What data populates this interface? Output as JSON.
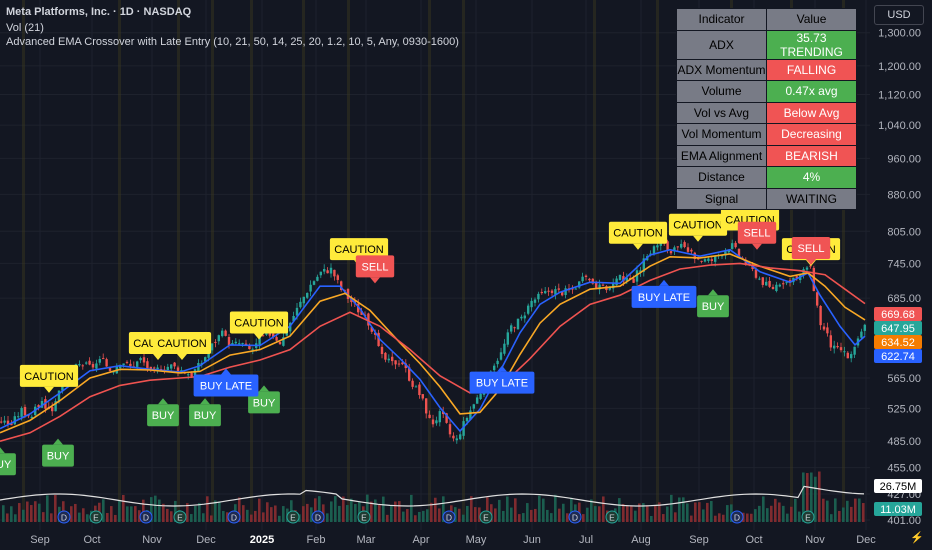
{
  "header": {
    "symbol": "Meta Platforms, Inc. · 1D · NASDAQ",
    "volume_indicator": "Vol (21)",
    "strategy": "Advanced EMA Crossover with Late Entry (10, 21, 50, 14, 25, 20, 1.2, 10, 5, Any, 0930-1600)"
  },
  "currency": "USD",
  "panel": {
    "headers": [
      "Indicator",
      "Value"
    ],
    "rows": [
      {
        "label": "ADX",
        "value": "35.73 TRENDING",
        "color": "#4caf50"
      },
      {
        "label": "ADX Momentum",
        "value": "FALLING",
        "color": "#f05454"
      },
      {
        "label": "Volume",
        "value": "0.47x avg",
        "color": "#4caf50"
      },
      {
        "label": "Vol vs Avg",
        "value": "Below Avg",
        "color": "#f05454"
      },
      {
        "label": "Vol Momentum",
        "value": "Decreasing",
        "color": "#f05454"
      },
      {
        "label": "EMA Alignment",
        "value": "BEARISH",
        "color": "#f05454"
      },
      {
        "label": "Distance",
        "value": "4%",
        "color": "#4caf50"
      },
      {
        "label": "Signal",
        "value": "WAITING",
        "color": "#787b86"
      }
    ]
  },
  "chart_data": {
    "type": "candlestick",
    "x_labels": [
      "Sep",
      "Oct",
      "Nov",
      "Dec",
      "2025",
      "Feb",
      "Mar",
      "Apr",
      "May",
      "Jun",
      "Jul",
      "Aug",
      "Sep",
      "Oct",
      "Nov",
      "Dec"
    ],
    "y_ticks": [
      1300,
      1200,
      1120,
      1040,
      960,
      880,
      805,
      745,
      685,
      565,
      525,
      485,
      455,
      427,
      401
    ],
    "y_scale": "log",
    "ylim": [
      401,
      1380
    ],
    "price_path": [
      [
        0,
        510
      ],
      [
        10,
        505
      ],
      [
        20,
        523
      ],
      [
        30,
        515
      ],
      [
        40,
        535
      ],
      [
        50,
        520
      ],
      [
        60,
        560
      ],
      [
        70,
        575
      ],
      [
        80,
        585
      ],
      [
        90,
        580
      ],
      [
        100,
        590
      ],
      [
        110,
        575
      ],
      [
        120,
        590
      ],
      [
        130,
        580
      ],
      [
        140,
        592
      ],
      [
        150,
        572
      ],
      [
        160,
        580
      ],
      [
        170,
        582
      ],
      [
        180,
        576
      ],
      [
        190,
        570
      ],
      [
        200,
        586
      ],
      [
        210,
        610
      ],
      [
        220,
        630
      ],
      [
        230,
        612
      ],
      [
        240,
        615
      ],
      [
        250,
        603
      ],
      [
        260,
        622
      ],
      [
        270,
        630
      ],
      [
        280,
        615
      ],
      [
        290,
        650
      ],
      [
        300,
        680
      ],
      [
        310,
        710
      ],
      [
        320,
        730
      ],
      [
        330,
        735
      ],
      [
        340,
        700
      ],
      [
        350,
        680
      ],
      [
        360,
        660
      ],
      [
        370,
        640
      ],
      [
        380,
        595
      ],
      [
        390,
        585
      ],
      [
        400,
        590
      ],
      [
        410,
        560
      ],
      [
        420,
        540
      ],
      [
        430,
        505
      ],
      [
        440,
        520
      ],
      [
        450,
        490
      ],
      [
        455,
        485
      ],
      [
        460,
        500
      ],
      [
        470,
        525
      ],
      [
        480,
        548
      ],
      [
        490,
        580
      ],
      [
        500,
        600
      ],
      [
        510,
        640
      ],
      [
        520,
        652
      ],
      [
        530,
        680
      ],
      [
        540,
        690
      ],
      [
        550,
        700
      ],
      [
        560,
        695
      ],
      [
        570,
        698
      ],
      [
        580,
        715
      ],
      [
        590,
        715
      ],
      [
        600,
        700
      ],
      [
        610,
        705
      ],
      [
        620,
        720
      ],
      [
        630,
        710
      ],
      [
        640,
        740
      ],
      [
        650,
        770
      ],
      [
        660,
        785
      ],
      [
        670,
        765
      ],
      [
        680,
        775
      ],
      [
        690,
        760
      ],
      [
        700,
        752
      ],
      [
        710,
        750
      ],
      [
        720,
        765
      ],
      [
        730,
        780
      ],
      [
        740,
        755
      ],
      [
        750,
        735
      ],
      [
        760,
        715
      ],
      [
        770,
        700
      ],
      [
        780,
        715
      ],
      [
        790,
        710
      ],
      [
        800,
        725
      ],
      [
        808,
        745
      ],
      [
        815,
        680
      ],
      [
        820,
        640
      ],
      [
        825,
        630
      ],
      [
        830,
        610
      ],
      [
        835,
        604
      ],
      [
        840,
        605
      ],
      [
        848,
        592
      ],
      [
        855,
        610
      ],
      [
        862,
        640
      ]
    ],
    "series": [
      {
        "name": "EMA 10",
        "color": "#2962ff",
        "values": [
          [
            0,
            500
          ],
          [
            30,
            518
          ],
          [
            60,
            545
          ],
          [
            90,
            575
          ],
          [
            120,
            582
          ],
          [
            150,
            577
          ],
          [
            180,
            573
          ],
          [
            200,
            582
          ],
          [
            230,
            612
          ],
          [
            260,
            611
          ],
          [
            290,
            640
          ],
          [
            320,
            705
          ],
          [
            340,
            705
          ],
          [
            360,
            668
          ],
          [
            380,
            620
          ],
          [
            400,
            592
          ],
          [
            420,
            563
          ],
          [
            440,
            526
          ],
          [
            460,
            497
          ],
          [
            480,
            524
          ],
          [
            500,
            574
          ],
          [
            520,
            630
          ],
          [
            540,
            675
          ],
          [
            560,
            695
          ],
          [
            590,
            712
          ],
          [
            620,
            710
          ],
          [
            650,
            760
          ],
          [
            670,
            770
          ],
          [
            700,
            758
          ],
          [
            730,
            770
          ],
          [
            760,
            730
          ],
          [
            790,
            712
          ],
          [
            808,
            728
          ],
          [
            820,
            690
          ],
          [
            840,
            640
          ],
          [
            855,
            612
          ],
          [
            865,
            625
          ]
        ]
      },
      {
        "name": "EMA 21",
        "color": "#f9a825",
        "values": [
          [
            0,
            495
          ],
          [
            30,
            510
          ],
          [
            60,
            535
          ],
          [
            90,
            565
          ],
          [
            120,
            577
          ],
          [
            150,
            576
          ],
          [
            180,
            572
          ],
          [
            200,
            574
          ],
          [
            230,
            597
          ],
          [
            260,
            605
          ],
          [
            290,
            625
          ],
          [
            320,
            680
          ],
          [
            345,
            693
          ],
          [
            370,
            665
          ],
          [
            400,
            615
          ],
          [
            420,
            585
          ],
          [
            440,
            553
          ],
          [
            460,
            518
          ],
          [
            480,
            520
          ],
          [
            500,
            550
          ],
          [
            520,
            598
          ],
          [
            540,
            645
          ],
          [
            560,
            675
          ],
          [
            590,
            700
          ],
          [
            620,
            705
          ],
          [
            650,
            740
          ],
          [
            670,
            757
          ],
          [
            700,
            755
          ],
          [
            730,
            762
          ],
          [
            760,
            740
          ],
          [
            790,
            722
          ],
          [
            808,
            728
          ],
          [
            825,
            705
          ],
          [
            845,
            670
          ],
          [
            865,
            650
          ]
        ]
      },
      {
        "name": "EMA 50",
        "color": "#ef5350",
        "values": [
          [
            0,
            485
          ],
          [
            30,
            495
          ],
          [
            60,
            515
          ],
          [
            90,
            540
          ],
          [
            120,
            555
          ],
          [
            150,
            562
          ],
          [
            180,
            565
          ],
          [
            200,
            567
          ],
          [
            230,
            580
          ],
          [
            260,
            590
          ],
          [
            290,
            605
          ],
          [
            320,
            640
          ],
          [
            350,
            662
          ],
          [
            380,
            640
          ],
          [
            410,
            605
          ],
          [
            440,
            568
          ],
          [
            470,
            545
          ],
          [
            500,
            553
          ],
          [
            530,
            592
          ],
          [
            560,
            640
          ],
          [
            590,
            675
          ],
          [
            620,
            690
          ],
          [
            650,
            715
          ],
          [
            680,
            735
          ],
          [
            710,
            742
          ],
          [
            740,
            745
          ],
          [
            770,
            737
          ],
          [
            800,
            732
          ],
          [
            825,
            725
          ],
          [
            845,
            700
          ],
          [
            865,
            676
          ]
        ]
      }
    ],
    "signals": [
      {
        "label": "BUY",
        "type": "buy",
        "x": 0,
        "price": 478
      },
      {
        "label": "BUY",
        "type": "buy",
        "x": 58,
        "price": 488
      },
      {
        "label": "BUY",
        "type": "buy",
        "x": 163,
        "price": 538
      },
      {
        "label": "BUY",
        "type": "buy",
        "x": 205,
        "price": 538
      },
      {
        "label": "BUY",
        "type": "buy",
        "x": 264,
        "price": 555
      },
      {
        "label": "BUY",
        "type": "buy",
        "x": 713,
        "price": 700
      },
      {
        "label": "BUY LATE",
        "type": "late",
        "x": 226,
        "price": 578
      },
      {
        "label": "BUY LATE",
        "type": "late",
        "x": 502,
        "price": 582
      },
      {
        "label": "BUY LATE",
        "type": "late",
        "x": 664,
        "price": 716
      },
      {
        "label": "CAUTION",
        "type": "caution",
        "x": 49,
        "price": 545
      },
      {
        "label": "CAUTION",
        "type": "caution",
        "x": 158,
        "price": 590
      },
      {
        "label": "CAUTION",
        "type": "caution",
        "x": 182,
        "price": 590
      },
      {
        "label": "CAUTION",
        "type": "caution",
        "x": 259,
        "price": 620
      },
      {
        "label": "CAUTION",
        "type": "caution",
        "x": 359,
        "price": 740
      },
      {
        "label": "CAUTION",
        "type": "caution",
        "x": 638,
        "price": 770
      },
      {
        "label": "CAUTION",
        "type": "caution",
        "x": 698,
        "price": 785
      },
      {
        "label": "CAUTION",
        "type": "caution",
        "x": 750,
        "price": 795
      },
      {
        "label": "CAUTION",
        "type": "caution",
        "x": 811,
        "price": 740
      },
      {
        "label": "SELL",
        "type": "sell",
        "x": 375,
        "price": 710
      },
      {
        "label": "SELL",
        "type": "sell",
        "x": 757,
        "price": 770
      },
      {
        "label": "SELL",
        "type": "sell",
        "x": 811,
        "price": 742
      }
    ],
    "price_tags": [
      {
        "value": "669.68",
        "color": "#f05454"
      },
      {
        "value": "647.95",
        "color": "#26a69a"
      },
      {
        "value": "634.52",
        "color": "#f57c00"
      },
      {
        "value": "622.74",
        "color": "#2962ff"
      },
      {
        "value": "26.75M",
        "color": "#ffffff"
      },
      {
        "value": "11.03M",
        "color": "#26a69a"
      }
    ],
    "event_markers": [
      "D",
      "E",
      "D",
      "E",
      "D",
      "E",
      "D",
      "E",
      "D",
      "E",
      "D",
      "E",
      "D",
      "E"
    ]
  }
}
